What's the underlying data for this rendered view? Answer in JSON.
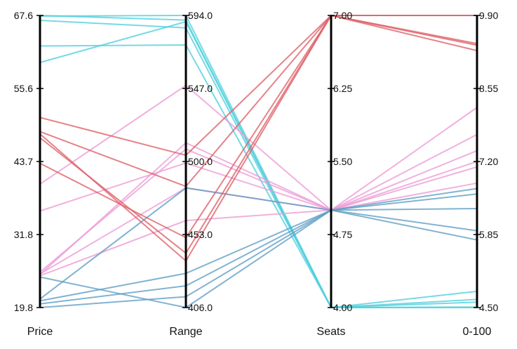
{
  "chart_data": {
    "type": "parallel-coordinates",
    "title": "",
    "grid": false,
    "legend": "none",
    "axes": [
      {
        "name": "Price",
        "range": [
          19.8,
          67.6
        ],
        "ticks": [
          "19.8",
          "31.8",
          "43.7",
          "55.6",
          "67.6"
        ]
      },
      {
        "name": "Range",
        "range": [
          406.0,
          594.0
        ],
        "ticks": [
          "406.0",
          "453.0",
          "500.0",
          "547.0",
          "594.0"
        ]
      },
      {
        "name": "Seats",
        "range": [
          4.0,
          7.0
        ],
        "ticks": [
          "4.00",
          "4.75",
          "5.50",
          "6.25",
          "7.00"
        ]
      },
      {
        "name": "0-100",
        "range": [
          4.5,
          9.9
        ],
        "ticks": [
          "4.50",
          "5.85",
          "7.20",
          "8.55",
          "9.90"
        ]
      }
    ],
    "groups": [
      {
        "key": "seats-4",
        "color": "#4ecfdc"
      },
      {
        "key": "seats-5-high",
        "color": "#ec9bd6"
      },
      {
        "key": "seats-5-low",
        "color": "#5d9dc4"
      },
      {
        "key": "seats-7",
        "color": "#de5f66"
      }
    ],
    "records": [
      {
        "group": "seats-4",
        "values": [
          67.5,
          594.0,
          4.0,
          4.5
        ]
      },
      {
        "group": "seats-4",
        "values": [
          66.8,
          586.0,
          4.0,
          4.51
        ]
      },
      {
        "group": "seats-4",
        "values": [
          62.6,
          575.0,
          4.0,
          4.6
        ]
      },
      {
        "group": "seats-4",
        "values": [
          59.9,
          590.0,
          4.0,
          4.65
        ]
      },
      {
        "group": "seats-4",
        "values": [
          67.6,
          591.0,
          4.0,
          4.8
        ]
      },
      {
        "group": "seats-5-high",
        "values": [
          40.0,
          549.0,
          5.0,
          7.7
        ]
      },
      {
        "group": "seats-5-high",
        "values": [
          35.6,
          499.0,
          5.0,
          7.4
        ]
      },
      {
        "group": "seats-5-high",
        "values": [
          25.3,
          483.0,
          5.0,
          7.2
        ]
      },
      {
        "group": "seats-5-high",
        "values": [
          25.6,
          508.0,
          5.0,
          7.1
        ]
      },
      {
        "group": "seats-5-high",
        "values": [
          25.0,
          462.0,
          5.0,
          8.2
        ]
      },
      {
        "group": "seats-5-high",
        "values": [
          25.2,
          512.0,
          5.0,
          6.8
        ]
      },
      {
        "group": "seats-5-low",
        "values": [
          24.8,
          406.0,
          5.0,
          6.7
        ]
      },
      {
        "group": "seats-5-low",
        "values": [
          21.2,
          483.0,
          5.0,
          6.33
        ]
      },
      {
        "group": "seats-5-low",
        "values": [
          20.4,
          420.0,
          5.0,
          5.92
        ]
      },
      {
        "group": "seats-5-low",
        "values": [
          19.8,
          413.0,
          5.0,
          5.75
        ]
      },
      {
        "group": "seats-5-low",
        "values": [
          20.9,
          428.0,
          5.0,
          6.6
        ]
      },
      {
        "group": "seats-7",
        "values": [
          50.9,
          504.0,
          7.0,
          9.9
        ]
      },
      {
        "group": "seats-7",
        "values": [
          48.6,
          484.0,
          7.0,
          9.35
        ]
      },
      {
        "group": "seats-7",
        "values": [
          47.6,
          441.0,
          7.0,
          9.25
        ]
      },
      {
        "group": "seats-7",
        "values": [
          48.2,
          436.0,
          7.0,
          9.38
        ]
      },
      {
        "group": "seats-7",
        "values": [
          43.4,
          451.0,
          7.0,
          9.9
        ]
      }
    ]
  }
}
